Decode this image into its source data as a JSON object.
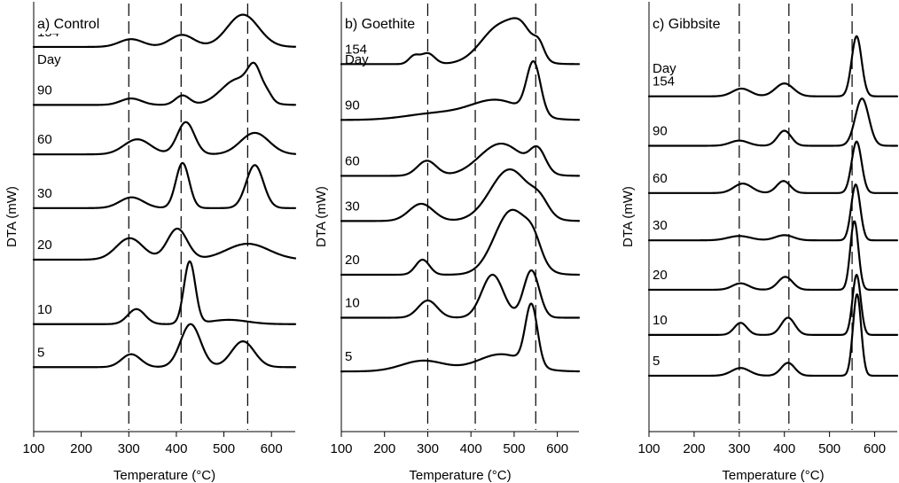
{
  "chart_data": [
    {
      "type": "line",
      "title": "a) Control",
      "series_header": "Day",
      "xlabel": "Temperature (°C)",
      "ylabel": "DTA (mW)",
      "xlim": [
        100,
        650
      ],
      "xticks": [
        100,
        200,
        300,
        400,
        500,
        600
      ],
      "reference_lines": [
        300,
        410,
        550
      ],
      "series": [
        {
          "name": "154",
          "baseline": 0.895,
          "peaks": [
            [
              305,
              0.018,
              25
            ],
            [
              412,
              0.028,
              25
            ],
            [
              540,
              0.075,
              33
            ]
          ]
        },
        {
          "name": "90",
          "baseline": 0.76,
          "peaks": [
            [
              305,
              0.015,
              22
            ],
            [
              413,
              0.022,
              15
            ],
            [
              530,
              0.06,
              35
            ],
            [
              565,
              0.06,
              14
            ],
            [
              592,
              0.015,
              10
            ]
          ]
        },
        {
          "name": "60",
          "baseline": 0.645,
          "peaks": [
            [
              318,
              0.035,
              28
            ],
            [
              420,
              0.075,
              18
            ],
            [
              565,
              0.05,
              30
            ]
          ]
        },
        {
          "name": "30",
          "baseline": 0.52,
          "peaks": [
            [
              306,
              0.025,
              25
            ],
            [
              413,
              0.105,
              14
            ],
            [
              565,
              0.1,
              18
            ]
          ]
        },
        {
          "name": "20",
          "baseline": 0.4,
          "peaks": [
            [
              302,
              0.05,
              28
            ],
            [
              402,
              0.072,
              21
            ],
            [
              550,
              0.037,
              45
            ]
          ]
        },
        {
          "name": "10",
          "baseline": 0.25,
          "peaks": [
            [
              316,
              0.035,
              18
            ],
            [
              428,
              0.145,
              12
            ],
            [
              510,
              0.01,
              40
            ]
          ]
        },
        {
          "name": "5",
          "baseline": 0.15,
          "peaks": [
            [
              305,
              0.03,
              20
            ],
            [
              430,
              0.1,
              21
            ],
            [
              540,
              0.06,
              24
            ]
          ]
        }
      ]
    },
    {
      "type": "line",
      "title": "b) Goethite",
      "series_header": "Day",
      "xlabel": "Temperature (°C)",
      "ylabel": "DTA (mW)",
      "xlim": [
        100,
        650
      ],
      "xticks": [
        100,
        200,
        300,
        400,
        500,
        600
      ],
      "reference_lines": [
        300,
        410,
        550
      ],
      "series": [
        {
          "name": "154",
          "baseline": 0.855,
          "peaks": [
            [
              268,
              0.018,
              12
            ],
            [
              300,
              0.025,
              16
            ],
            [
              470,
              0.09,
              45
            ],
            [
              520,
              0.048,
              25
            ],
            [
              558,
              0.03,
              12
            ]
          ]
        },
        {
          "name": "90",
          "baseline": 0.725,
          "peaks": [
            [
              320,
              0.015,
              70
            ],
            [
              460,
              0.045,
              60
            ],
            [
              545,
              0.12,
              16
            ]
          ]
        },
        {
          "name": "60",
          "baseline": 0.595,
          "peaks": [
            [
              298,
              0.035,
              22
            ],
            [
              470,
              0.075,
              50
            ],
            [
              555,
              0.05,
              18
            ]
          ]
        },
        {
          "name": "30",
          "baseline": 0.49,
          "peaks": [
            [
              285,
              0.04,
              28
            ],
            [
              490,
              0.12,
              45
            ],
            [
              560,
              0.03,
              20
            ]
          ]
        },
        {
          "name": "20",
          "baseline": 0.365,
          "peaks": [
            [
              288,
              0.035,
              16
            ],
            [
              495,
              0.15,
              40
            ],
            [
              545,
              0.04,
              18
            ]
          ]
        },
        {
          "name": "10",
          "baseline": 0.265,
          "peaks": [
            [
              300,
              0.04,
              22
            ],
            [
              450,
              0.1,
              25
            ],
            [
              540,
              0.11,
              18
            ]
          ]
        },
        {
          "name": "5",
          "baseline": 0.14,
          "peaks": [
            [
              290,
              0.025,
              50
            ],
            [
              470,
              0.04,
              55
            ],
            [
              540,
              0.14,
              14
            ]
          ]
        }
      ]
    },
    {
      "type": "line",
      "title": "c) Gibbsite",
      "series_header": "Day",
      "xlabel": "Temperature (°C)",
      "ylabel": "DTA (mW)",
      "xlim": [
        100,
        650
      ],
      "xticks": [
        100,
        200,
        300,
        400,
        500,
        600
      ],
      "reference_lines": [
        300,
        410,
        550
      ],
      "series": [
        {
          "name": "154",
          "baseline": 0.78,
          "peaks": [
            [
              305,
              0.018,
              20
            ],
            [
              400,
              0.03,
              20
            ],
            [
              560,
              0.14,
              11
            ]
          ]
        },
        {
          "name": "90",
          "baseline": 0.665,
          "peaks": [
            [
              300,
              0.012,
              20
            ],
            [
              400,
              0.035,
              15
            ],
            [
              572,
              0.11,
              15
            ]
          ]
        },
        {
          "name": "60",
          "baseline": 0.555,
          "peaks": [
            [
              308,
              0.022,
              20
            ],
            [
              398,
              0.028,
              15
            ],
            [
              560,
              0.12,
              11
            ]
          ]
        },
        {
          "name": "30",
          "baseline": 0.445,
          "peaks": [
            [
              300,
              0.01,
              25
            ],
            [
              400,
              0.012,
              20
            ],
            [
              558,
              0.13,
              10
            ]
          ]
        },
        {
          "name": "20",
          "baseline": 0.33,
          "peaks": [
            [
              303,
              0.015,
              18
            ],
            [
              402,
              0.03,
              16
            ],
            [
              555,
              0.16,
              9
            ]
          ]
        },
        {
          "name": "10",
          "baseline": 0.225,
          "peaks": [
            [
              303,
              0.028,
              14
            ],
            [
              408,
              0.04,
              15
            ],
            [
              560,
              0.14,
              9
            ]
          ]
        },
        {
          "name": "5",
          "baseline": 0.13,
          "peaks": [
            [
              303,
              0.018,
              20
            ],
            [
              408,
              0.03,
              15
            ],
            [
              561,
              0.19,
              9
            ]
          ]
        }
      ]
    }
  ]
}
